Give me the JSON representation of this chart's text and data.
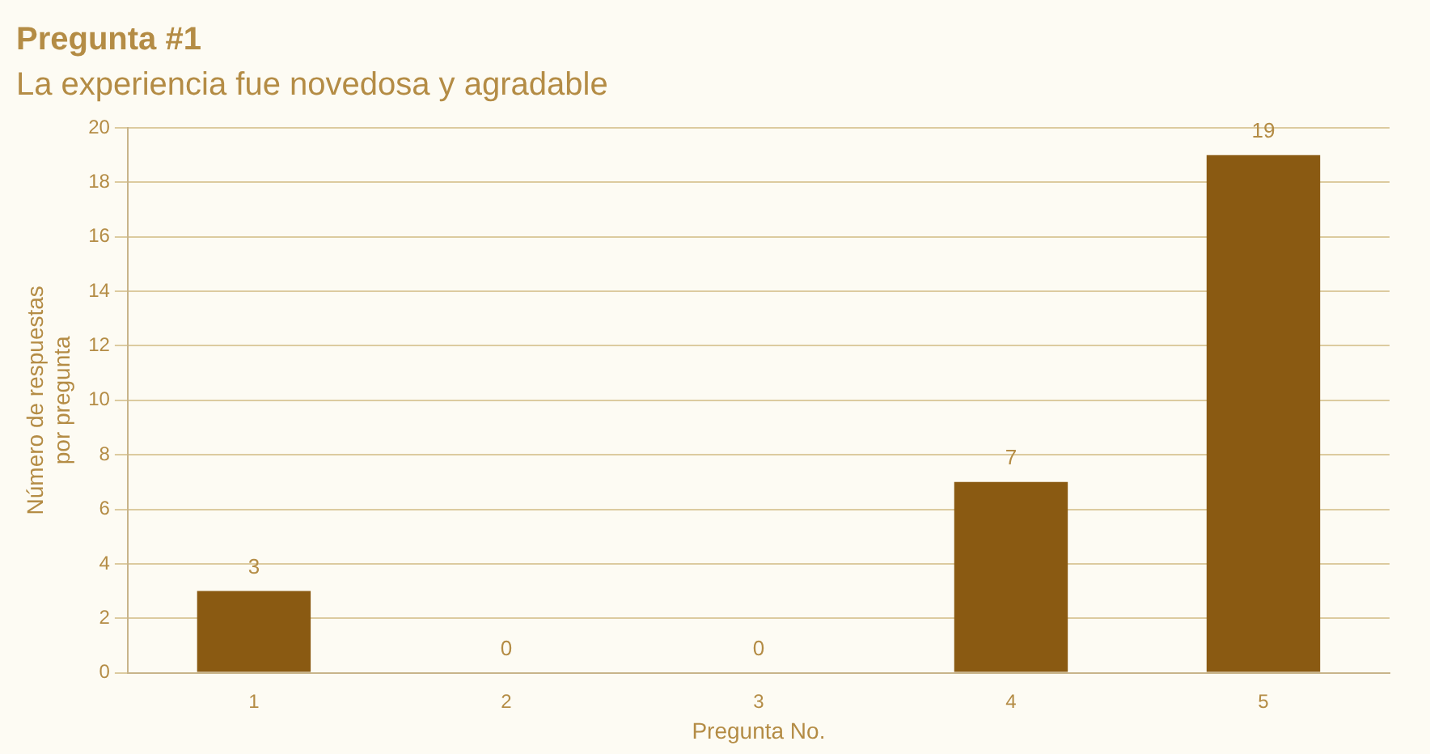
{
  "chart_data": {
    "type": "bar",
    "title": "Pregunta #1",
    "subtitle": "La experiencia fue novedosa y agradable",
    "xlabel": "Pregunta No.",
    "ylabel": "Número de respuestas\npor pregunta",
    "categories": [
      "1",
      "2",
      "3",
      "4",
      "5"
    ],
    "values": [
      3,
      0,
      0,
      7,
      19
    ],
    "color": "#8a5a12",
    "ylim": [
      0,
      20
    ],
    "yticks": [
      0,
      2,
      4,
      6,
      8,
      10,
      12,
      14,
      16,
      18,
      20
    ],
    "grid": "y",
    "data_labels": true,
    "legend": false
  }
}
